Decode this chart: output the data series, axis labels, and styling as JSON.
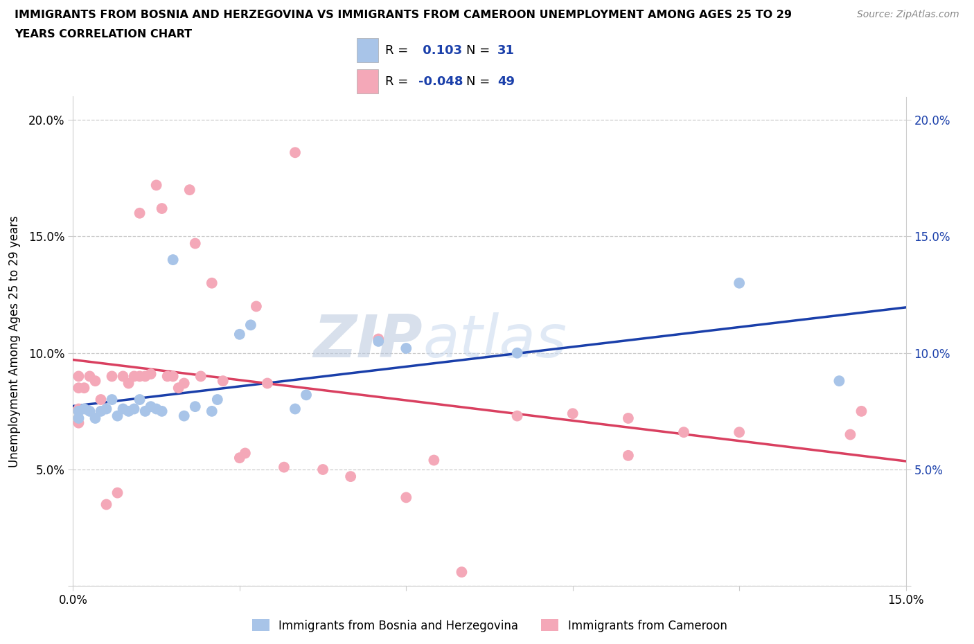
{
  "title_line1": "IMMIGRANTS FROM BOSNIA AND HERZEGOVINA VS IMMIGRANTS FROM CAMEROON UNEMPLOYMENT AMONG AGES 25 TO 29",
  "title_line2": "YEARS CORRELATION CHART",
  "source": "Source: ZipAtlas.com",
  "ylabel": "Unemployment Among Ages 25 to 29 years",
  "xlim": [
    0.0,
    0.15
  ],
  "ylim": [
    0.0,
    0.21
  ],
  "x_ticks": [
    0.0,
    0.03,
    0.06,
    0.09,
    0.12,
    0.15
  ],
  "y_ticks": [
    0.0,
    0.05,
    0.1,
    0.15,
    0.2
  ],
  "blue_R": 0.103,
  "blue_N": 31,
  "pink_R": -0.048,
  "pink_N": 49,
  "blue_scatter_color": "#a8c4e8",
  "pink_scatter_color": "#f4a8b8",
  "blue_line_color": "#1a3faa",
  "pink_line_color": "#d94060",
  "watermark_color": "#cdd8ee",
  "blue_x": [
    0.001,
    0.001,
    0.002,
    0.003,
    0.004,
    0.005,
    0.006,
    0.007,
    0.008,
    0.009,
    0.01,
    0.011,
    0.012,
    0.013,
    0.014,
    0.015,
    0.016,
    0.018,
    0.02,
    0.022,
    0.025,
    0.026,
    0.03,
    0.032,
    0.04,
    0.042,
    0.055,
    0.06,
    0.08,
    0.12,
    0.138
  ],
  "blue_y": [
    0.075,
    0.072,
    0.076,
    0.075,
    0.072,
    0.075,
    0.076,
    0.08,
    0.073,
    0.076,
    0.075,
    0.076,
    0.08,
    0.075,
    0.077,
    0.076,
    0.075,
    0.14,
    0.073,
    0.077,
    0.075,
    0.08,
    0.108,
    0.112,
    0.076,
    0.082,
    0.105,
    0.102,
    0.1,
    0.13,
    0.088
  ],
  "pink_x": [
    0.001,
    0.001,
    0.001,
    0.001,
    0.002,
    0.003,
    0.004,
    0.005,
    0.006,
    0.007,
    0.008,
    0.009,
    0.01,
    0.011,
    0.012,
    0.012,
    0.013,
    0.014,
    0.015,
    0.016,
    0.017,
    0.018,
    0.019,
    0.02,
    0.021,
    0.022,
    0.023,
    0.025,
    0.027,
    0.03,
    0.031,
    0.033,
    0.035,
    0.038,
    0.04,
    0.045,
    0.05,
    0.055,
    0.06,
    0.065,
    0.07,
    0.08,
    0.09,
    0.1,
    0.1,
    0.11,
    0.12,
    0.14,
    0.142
  ],
  "pink_y": [
    0.09,
    0.085,
    0.076,
    0.07,
    0.085,
    0.09,
    0.088,
    0.08,
    0.035,
    0.09,
    0.04,
    0.09,
    0.087,
    0.09,
    0.09,
    0.16,
    0.09,
    0.091,
    0.172,
    0.162,
    0.09,
    0.09,
    0.085,
    0.087,
    0.17,
    0.147,
    0.09,
    0.13,
    0.088,
    0.055,
    0.057,
    0.12,
    0.087,
    0.051,
    0.186,
    0.05,
    0.047,
    0.106,
    0.038,
    0.054,
    0.006,
    0.073,
    0.074,
    0.072,
    0.056,
    0.066,
    0.066,
    0.065,
    0.075
  ]
}
